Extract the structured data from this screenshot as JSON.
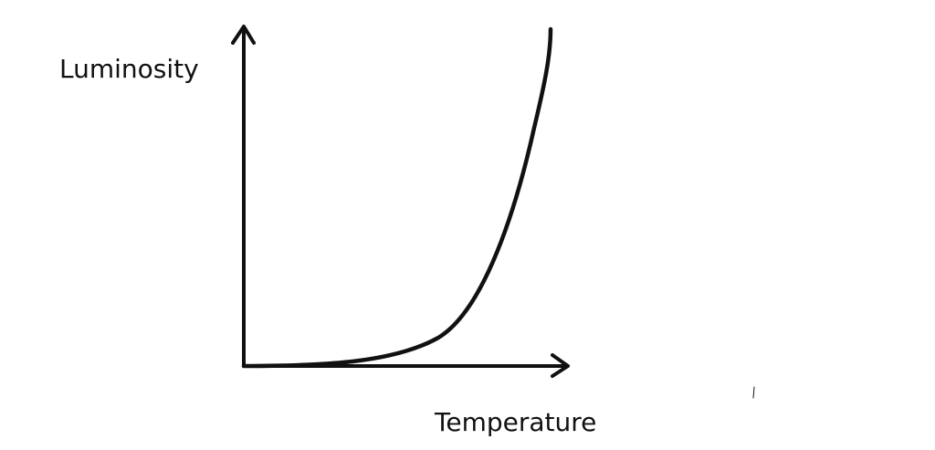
{
  "labels": {
    "y_axis": "Luminosity",
    "x_axis": "Temperature"
  }
}
